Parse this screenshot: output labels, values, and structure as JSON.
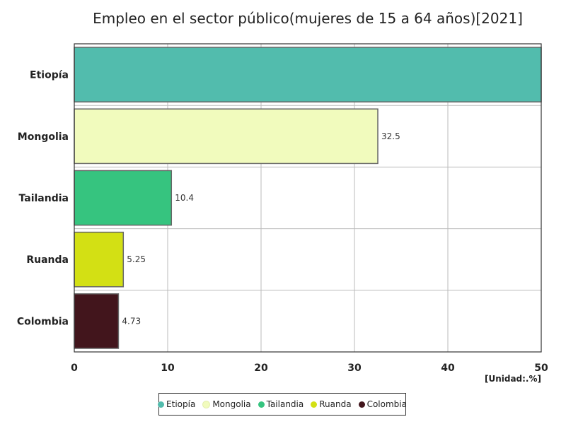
{
  "chart_data": {
    "type": "bar",
    "orientation": "horizontal",
    "title": "Empleo en el sector público(mujeres de 15 a 64 años)[2021]",
    "unit_label": "[Unidad:.%]",
    "xlim": [
      0,
      50
    ],
    "ticks": [
      0,
      10,
      20,
      30,
      40,
      50
    ],
    "tick_labels": [
      "0",
      "10",
      "20",
      "30",
      "40",
      "50"
    ],
    "categories": [
      "Etiopía",
      "Mongolia",
      "Tailandia",
      "Ruanda",
      "Colombia"
    ],
    "values": [
      50,
      32.5,
      10.4,
      5.25,
      4.73
    ],
    "data_labels": [
      "",
      "32.5",
      "10.4",
      "5.25",
      "4.73"
    ],
    "colors": [
      "#52bcad",
      "#f1fbbd",
      "#36c47f",
      "#d3e014",
      "#42151c"
    ],
    "legend": [
      "Etiopía",
      "Mongolia",
      "Tailandia",
      "Ruanda",
      "Colombia"
    ],
    "grid": true
  }
}
